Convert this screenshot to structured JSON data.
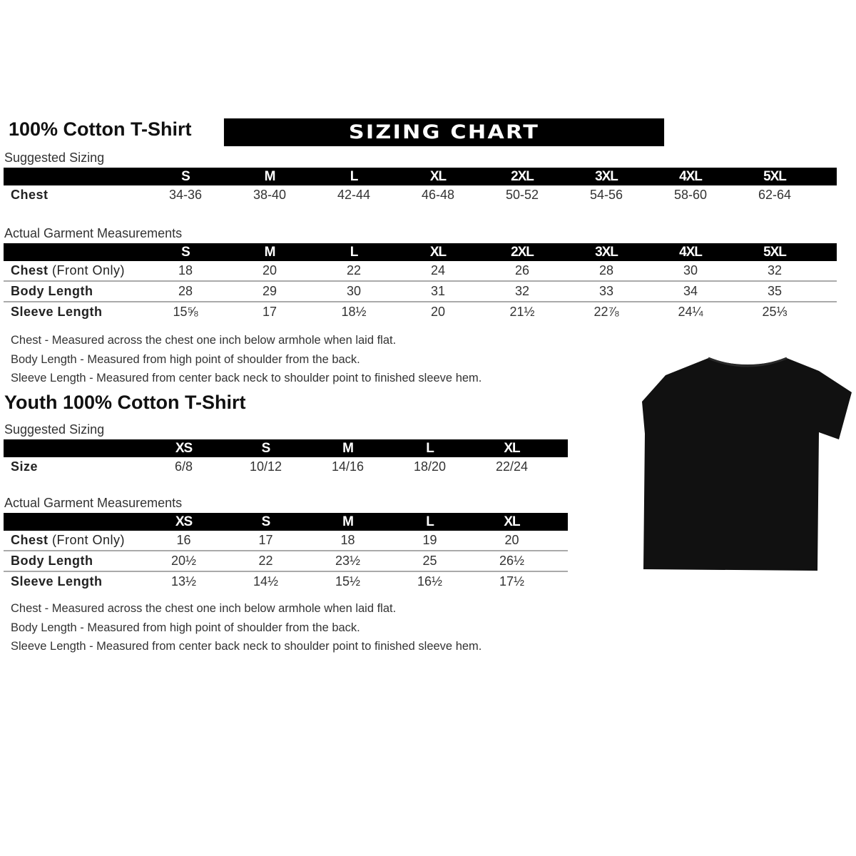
{
  "adult": {
    "title": "100% Cotton T-Shirt",
    "banner": "SIZING CHART",
    "suggested_label": "Suggested Sizing",
    "sizes": [
      "S",
      "M",
      "L",
      "XL",
      "2XL",
      "3XL",
      "4XL",
      "5XL"
    ],
    "suggested_rows": [
      {
        "label": "Chest",
        "values": [
          "34-36",
          "38-40",
          "42-44",
          "46-48",
          "50-52",
          "54-56",
          "58-60",
          "62-64"
        ]
      }
    ],
    "actual_label": "Actual Garment Measurements",
    "actual_rows": [
      {
        "label": "Chest",
        "qualifier": "(Front Only)",
        "values": [
          "18",
          "20",
          "22",
          "24",
          "26",
          "28",
          "30",
          "32"
        ]
      },
      {
        "label": "Body Length",
        "values": [
          "28",
          "29",
          "30",
          "31",
          "32",
          "33",
          "34",
          "35"
        ]
      },
      {
        "label": "Sleeve Length",
        "values": [
          "15⅝",
          "17",
          "18½",
          "20",
          "21½",
          "22⅞",
          "24¼",
          "25⅓"
        ]
      }
    ],
    "notes": [
      "Chest - Measured across the chest one inch below armhole when laid flat.",
      "Body Length - Measured from high point of shoulder from the back.",
      "Sleeve Length - Measured from center back neck to shoulder point to finished sleeve hem."
    ]
  },
  "youth": {
    "title": "Youth 100% Cotton T-Shirt",
    "suggested_label": "Suggested Sizing",
    "sizes": [
      "XS",
      "S",
      "M",
      "L",
      "XL"
    ],
    "suggested_rows": [
      {
        "label": "Size",
        "values": [
          "6/8",
          "10/12",
          "14/16",
          "18/20",
          "22/24"
        ]
      }
    ],
    "actual_label": "Actual Garment Measurements",
    "actual_rows": [
      {
        "label": "Chest",
        "qualifier": "(Front Only)",
        "values": [
          "16",
          "17",
          "18",
          "19",
          "20"
        ]
      },
      {
        "label": "Body Length",
        "values": [
          "20½",
          "22",
          "23½",
          "25",
          "26½"
        ]
      },
      {
        "label": "Sleeve Length",
        "values": [
          "13½",
          "14½",
          "15½",
          "16½",
          "17½"
        ]
      }
    ],
    "notes": [
      "Chest - Measured across the chest one inch below armhole when laid flat.",
      "Body Length - Measured from high point of shoulder from the back.",
      "Sleeve Length - Measured from center back neck to shoulder point to finished sleeve hem."
    ]
  },
  "image": {
    "icon": "black-tshirt-icon",
    "color": "#111111"
  }
}
